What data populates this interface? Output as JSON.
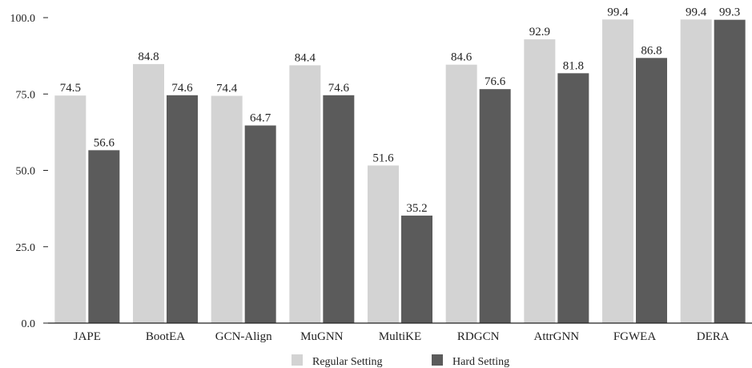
{
  "chart_data": {
    "type": "bar",
    "title": "",
    "xlabel": "",
    "ylabel": "",
    "ylim": [
      0,
      100
    ],
    "yticks": [
      "0.0",
      "25.0",
      "50.0",
      "75.0",
      "100.0"
    ],
    "ytick_values": [
      0,
      25,
      50,
      75,
      100
    ],
    "grid": false,
    "legend_position": "bottom-center",
    "categories": [
      "JAPE",
      "BootEA",
      "GCN-Align",
      "MuGNN",
      "MultiKE",
      "RDGCN",
      "AttrGNN",
      "FGWEA",
      "DERA"
    ],
    "series": [
      {
        "name": "Regular Setting",
        "color": "#d3d3d3",
        "values": [
          74.5,
          84.8,
          74.4,
          84.4,
          51.6,
          84.6,
          92.9,
          99.4,
          99.4
        ],
        "labels": [
          "74.5",
          "84.8",
          "74.4",
          "84.4",
          "51.6",
          "84.6",
          "92.9",
          "99.4",
          "99.4"
        ]
      },
      {
        "name": "Hard Setting",
        "color": "#5b5b5b",
        "values": [
          56.6,
          74.6,
          64.7,
          74.6,
          35.2,
          76.6,
          81.8,
          86.8,
          99.3
        ],
        "labels": [
          "56.6",
          "74.6",
          "64.7",
          "74.6",
          "35.2",
          "76.6",
          "81.8",
          "86.8",
          "99.3"
        ]
      }
    ]
  }
}
